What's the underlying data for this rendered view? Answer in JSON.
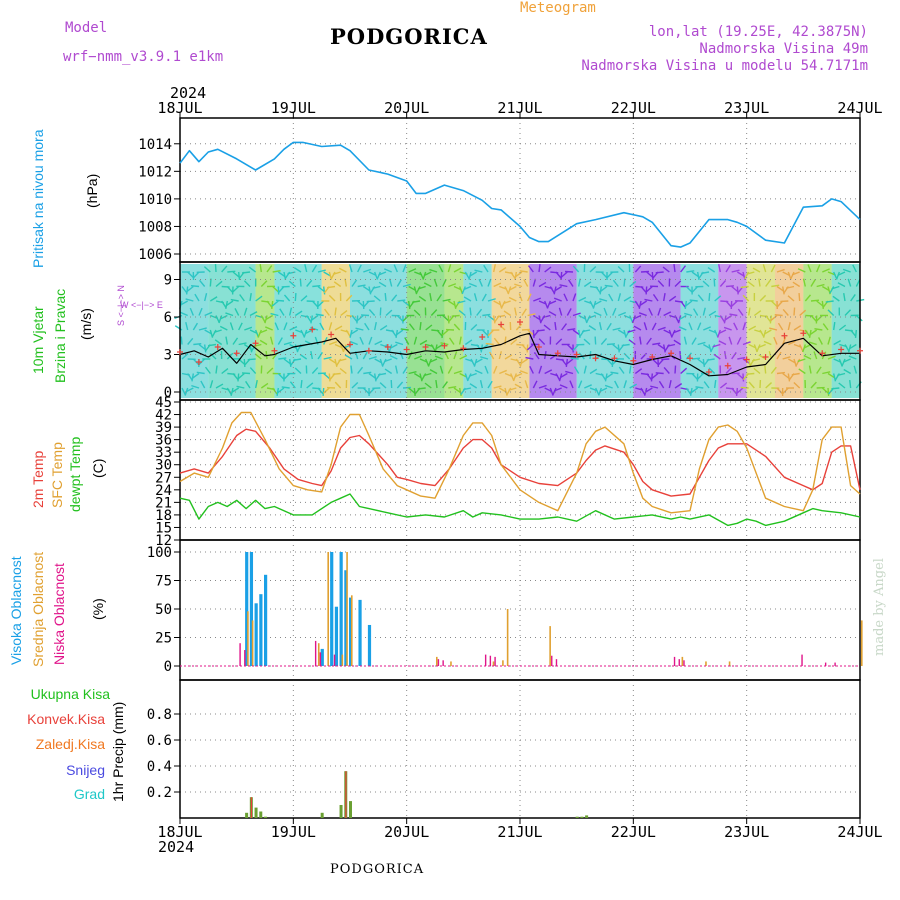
{
  "header": {
    "model_label": "Model",
    "model_name": "wrf−nmm_v3.9.1 e1km",
    "title": "PODGORICA",
    "meteogram_label": "Meteogram",
    "lonlat": "lon,lat (19.25E, 42.3875N)",
    "elevation": "Nadmorska Visina 49m",
    "model_elevation": "Nadmorska Visina u modelu 54.7171m",
    "year_top": "2024",
    "year_bottom": "2024",
    "footer_title": "PODGORICA",
    "credit": "made by Angel"
  },
  "time_axis": {
    "ticks": [
      "18JUL",
      "19JUL",
      "20JUL",
      "21JUL",
      "22JUL",
      "23JUL",
      "24JUL"
    ],
    "start": "2024-07-18T00",
    "end": "2024-07-24T00"
  },
  "panels": {
    "pressure": {
      "ylabel_lines": [
        "Pritisak na nivou mora",
        "(hPa)"
      ],
      "ylabel_colors": [
        "#1aa0e6",
        "#000000"
      ]
    },
    "wind": {
      "ylabel_lines": [
        "10m Vjetar",
        "Brzina i Pravac",
        "(m/s)"
      ],
      "ylabel_colors": [
        "#22c01e",
        "#22c01e",
        "#000000"
      ],
      "compass_lines": [
        "W <−|−> E",
        "S <−|−> N"
      ]
    },
    "temperature": {
      "ylabel_lines": [
        "2m Temp",
        "SFC Temp",
        "dewpt Temp",
        "(C)"
      ],
      "ylabel_colors": [
        "#e8413a",
        "#e0a030",
        "#22c01e",
        "#000000"
      ]
    },
    "cloud": {
      "ylabel_lines": [
        "Visoka Oblacnost",
        "Srednja Oblacnost",
        "Niska Oblacnost",
        "(%)"
      ],
      "ylabel_colors": [
        "#1aa0e6",
        "#e0a030",
        "#e0148a",
        "#000000"
      ]
    },
    "precip": {
      "legend": [
        {
          "label": "Ukupna Kisa",
          "color": "#22c01e"
        },
        {
          "label": "Konvek.Kisa",
          "color": "#e8413a"
        },
        {
          "label": "Zaledj.Kisa",
          "color": "#f07820"
        },
        {
          "label": "Snijeg",
          "color": "#4a4ae0"
        },
        {
          "label": "Grad",
          "color": "#1ec8c8"
        }
      ],
      "ylabel": "1hr Precip (mm)"
    }
  },
  "chart_data": [
    {
      "type": "line",
      "title": "",
      "ylabel": "Pritisak na nivou mora (hPa)",
      "ylim": [
        1006,
        1015
      ],
      "yticks": [
        1006,
        1008,
        1010,
        1012,
        1014
      ],
      "grid": true,
      "series": [
        {
          "name": "Pritisak na nivou mora",
          "color": "#1aa0e6",
          "x_hours": [
            0,
            2,
            4,
            6,
            8,
            12,
            16,
            20,
            22,
            24,
            26,
            30,
            34,
            36,
            40,
            44,
            48,
            50,
            52,
            56,
            60,
            64,
            66,
            68,
            72,
            74,
            76,
            78,
            84,
            88,
            94,
            98,
            100,
            104,
            106,
            108,
            112,
            116,
            118,
            120,
            124,
            128,
            132,
            136,
            138,
            140,
            144
          ],
          "values": [
            1012.6,
            1013.5,
            1012.7,
            1013.4,
            1013.6,
            1012.9,
            1012.1,
            1012.9,
            1013.6,
            1014.1,
            1014.1,
            1013.8,
            1013.9,
            1013.5,
            1012.1,
            1011.8,
            1011.3,
            1010.4,
            1010.4,
            1011.0,
            1010.6,
            1009.9,
            1009.3,
            1009.2,
            1008.0,
            1007.2,
            1006.9,
            1006.9,
            1008.2,
            1008.5,
            1009.0,
            1008.7,
            1008.3,
            1006.6,
            1006.5,
            1006.8,
            1008.5,
            1008.5,
            1008.3,
            1008.0,
            1007.0,
            1006.8,
            1009.4,
            1009.5,
            1010.0,
            1009.8,
            1008.5
          ]
        }
      ]
    },
    {
      "type": "line",
      "title": "",
      "ylabel": "10m Vjetar Brzina i Pravac (m/s)",
      "ylim": [
        0,
        9.6
      ],
      "yticks": [
        0,
        3,
        6,
        9
      ],
      "grid": true,
      "series": [
        {
          "name": "wind speed",
          "color": "#000000",
          "x_hours": [
            0,
            3,
            6,
            9,
            12,
            15,
            18,
            20,
            24,
            27,
            30,
            33,
            36,
            40,
            44,
            48,
            52,
            56,
            60,
            64,
            68,
            72,
            74,
            76,
            80,
            84,
            88,
            92,
            96,
            100,
            104,
            108,
            112,
            116,
            120,
            124,
            128,
            132,
            136,
            140,
            144
          ],
          "values": [
            3.0,
            3.3,
            2.8,
            3.5,
            2.3,
            3.8,
            2.9,
            3.0,
            3.6,
            3.8,
            4.0,
            4.3,
            3.1,
            3.3,
            3.2,
            3.0,
            3.3,
            3.2,
            3.4,
            3.5,
            3.8,
            4.5,
            4.7,
            3.0,
            2.9,
            2.8,
            3.0,
            2.5,
            2.2,
            2.6,
            2.9,
            2.2,
            1.3,
            1.4,
            2.0,
            2.2,
            3.9,
            4.3,
            2.9,
            3.1,
            3.1
          ]
        },
        {
          "name": "gust",
          "color": "#e8413a",
          "x_hours": [
            0,
            4,
            8,
            12,
            16,
            20,
            24,
            28,
            32,
            36,
            40,
            44,
            48,
            52,
            56,
            60,
            64,
            68,
            72,
            76,
            80,
            84,
            88,
            92,
            96,
            100,
            104,
            108,
            112,
            116,
            120,
            124,
            128,
            132,
            136,
            140,
            144
          ],
          "values": [
            3.2,
            2.4,
            3.6,
            3.1,
            3.9,
            3.3,
            4.5,
            5.0,
            4.6,
            3.8,
            3.3,
            3.6,
            3.4,
            3.6,
            3.7,
            3.5,
            4.4,
            5.4,
            5.6,
            3.6,
            3.1,
            3.0,
            2.7,
            2.7,
            2.5,
            2.8,
            3.1,
            2.7,
            1.6,
            2.1,
            2.6,
            2.8,
            4.5,
            4.7,
            3.1,
            3.4,
            3.3
          ]
        }
      ]
    },
    {
      "type": "line",
      "title": "",
      "ylabel": "(C)",
      "ylim": [
        12,
        45
      ],
      "yticks": [
        12,
        15,
        18,
        21,
        24,
        27,
        30,
        33,
        36,
        39,
        42,
        45
      ],
      "grid": true,
      "series": [
        {
          "name": "2m Temp",
          "color": "#e8413a",
          "x_hours": [
            0,
            3,
            6,
            9,
            12,
            14,
            16,
            19,
            22,
            25,
            28,
            30,
            32,
            34,
            36,
            38,
            40,
            44,
            46,
            48,
            51,
            54,
            57,
            60,
            62,
            64,
            66,
            68,
            72,
            76,
            80,
            84,
            86,
            88,
            90,
            94,
            96,
            98,
            100,
            104,
            108,
            110,
            112,
            114,
            116,
            120,
            124,
            128,
            132,
            134,
            136,
            138,
            140,
            142,
            144
          ],
          "values": [
            28,
            29,
            28,
            32,
            37,
            38.5,
            38,
            34,
            29,
            26.5,
            25.5,
            25,
            28.5,
            34,
            36.5,
            37,
            35,
            30,
            27,
            26.5,
            25.5,
            25,
            29,
            34,
            36,
            36,
            34,
            30,
            27,
            25.5,
            25,
            28,
            31,
            33.5,
            34.5,
            33,
            30,
            26,
            24,
            22.5,
            23,
            27,
            31,
            34,
            35,
            35,
            32,
            27,
            25,
            24,
            25.5,
            33,
            34.5,
            34.5,
            24
          ]
        },
        {
          "name": "SFC Temp",
          "color": "#e0a030",
          "x_hours": [
            0,
            3,
            6,
            9,
            11,
            13,
            15,
            18,
            21,
            24,
            27,
            30,
            32,
            34,
            36,
            38,
            40,
            43,
            46,
            48,
            51,
            54,
            57,
            60,
            62,
            64,
            66,
            68,
            72,
            76,
            80,
            84,
            86,
            88,
            90,
            94,
            96,
            98,
            100,
            104,
            108,
            110,
            112,
            114,
            116,
            118,
            120,
            124,
            128,
            132,
            134,
            136,
            138,
            140,
            142,
            144
          ],
          "values": [
            26,
            28,
            27,
            34,
            40,
            42.5,
            42.5,
            36,
            29,
            25,
            24,
            23.5,
            30,
            39,
            42,
            42,
            37,
            29,
            25,
            24,
            22.5,
            22,
            29,
            37,
            40,
            40,
            37,
            30,
            24,
            21,
            19,
            28,
            35,
            38,
            39,
            35,
            28,
            22,
            20,
            18.5,
            19,
            29,
            36,
            39,
            39.5,
            38,
            34,
            22,
            20,
            19,
            24,
            36,
            39,
            39,
            25,
            23
          ]
        },
        {
          "name": "dewpt Temp",
          "color": "#22c01e",
          "x_hours": [
            0,
            2,
            4,
            6,
            8,
            10,
            12,
            14,
            16,
            18,
            20,
            24,
            28,
            32,
            34,
            36,
            38,
            40,
            44,
            48,
            52,
            56,
            60,
            62,
            64,
            68,
            72,
            76,
            80,
            84,
            88,
            92,
            96,
            100,
            104,
            106,
            108,
            112,
            116,
            118,
            120,
            122,
            124,
            128,
            132,
            134,
            136,
            140,
            144
          ],
          "values": [
            22,
            21.5,
            17,
            20,
            21,
            20,
            21.5,
            19.5,
            21.5,
            19.5,
            20,
            18,
            18,
            21,
            22,
            23,
            20,
            19.5,
            18.5,
            17.5,
            18,
            17.5,
            19,
            17.5,
            18.5,
            18,
            17,
            17,
            17.5,
            16.5,
            19,
            17,
            17.5,
            18,
            17,
            17.5,
            17,
            18,
            15.5,
            16,
            17,
            16.5,
            15.5,
            16.5,
            18.5,
            19.5,
            19,
            18.5,
            17.5
          ]
        }
      ]
    },
    {
      "type": "bar",
      "title": "",
      "ylabel": "(%)",
      "ylim": [
        0,
        100
      ],
      "yticks": [
        0,
        25,
        50,
        75,
        100
      ],
      "grid": true,
      "series": [
        {
          "name": "Visoka Oblacnost",
          "color": "#1aa0e6",
          "x_hours": [
            14,
            15,
            16,
            17,
            18,
            19,
            30,
            32,
            33,
            34,
            35,
            36,
            37,
            38,
            40
          ],
          "values": [
            100,
            100,
            55,
            63,
            80,
            0,
            15,
            100,
            52,
            100,
            84,
            60,
            0,
            58,
            36
          ]
        },
        {
          "name": "Srednja Oblacnost",
          "color": "#e0a030",
          "x_hours": [
            14,
            15,
            29,
            31,
            34,
            35,
            36,
            54,
            57,
            66,
            68,
            69,
            78,
            106,
            111,
            116,
            144
          ],
          "values": [
            48,
            40,
            20,
            100,
            10,
            100,
            62,
            8,
            4,
            4,
            5,
            50,
            35,
            8,
            4,
            4,
            40
          ]
        },
        {
          "name": "Niska Oblacnost",
          "color": "#e0148a",
          "x_hours": [
            13,
            14,
            29,
            30,
            33,
            55,
            56,
            65,
            66,
            67,
            79,
            80,
            105,
            106,
            107,
            132,
            137,
            139
          ],
          "values": [
            20,
            14,
            22,
            12,
            10,
            6,
            5,
            10,
            9,
            8,
            9,
            6,
            8,
            6,
            5,
            10,
            3,
            3
          ]
        }
      ]
    },
    {
      "type": "bar",
      "title": "",
      "ylabel": "1hr Precip (mm)",
      "ylim": [
        0,
        1
      ],
      "yticks": [
        0.2,
        0.4,
        0.6,
        0.8
      ],
      "grid": true,
      "series": [
        {
          "name": "Ukupna Kisa",
          "color": "#6aa032",
          "x_hours": [
            14,
            15,
            16,
            17,
            18,
            30,
            34,
            35,
            36,
            84,
            85,
            86
          ],
          "values": [
            0.04,
            0.16,
            0.08,
            0.05,
            0.01,
            0.04,
            0.1,
            0.36,
            0.13,
            0.01,
            0.01,
            0.02
          ]
        },
        {
          "name": "Konvek.Kisa",
          "color": "#e8413a",
          "x_hours": [
            15,
            35
          ],
          "values": [
            0.16,
            0.36
          ]
        }
      ]
    }
  ]
}
